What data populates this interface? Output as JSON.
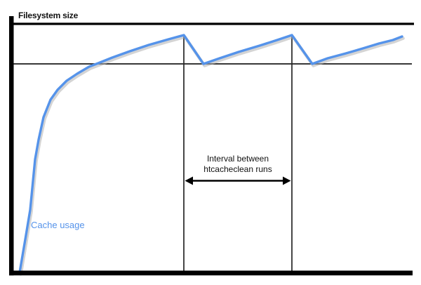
{
  "labels": {
    "filesystem_size": "Filesystem size",
    "cache_usage": "Cache usage",
    "interval_lines": [
      "Interval between",
      "htcacheclean runs"
    ]
  },
  "colors": {
    "cache_line": "#5593ea",
    "cache_line_shadow": "#b0b0b0",
    "axis": "#000000",
    "filesystem_limit_line": "#000000",
    "threshold_line": "#1b1b1b",
    "cleanup_marker_line": "#262626",
    "arrow": "#000000",
    "text": "#111111"
  },
  "chart_data": {
    "type": "line",
    "title": "",
    "xlabel": "",
    "ylabel": "Filesystem size",
    "legend_position": "none",
    "grid": false,
    "units": "pixel coordinates of the source image (y grows downward); axes are unlabeled/qualitative",
    "series": [
      {
        "name": "Cache usage",
        "points": [
          [
            28,
            388
          ],
          [
            36,
            341
          ],
          [
            43,
            299
          ],
          [
            50,
            227
          ],
          [
            55,
            199
          ],
          [
            62,
            167
          ],
          [
            72,
            142
          ],
          [
            82,
            128
          ],
          [
            95,
            115
          ],
          [
            110,
            105
          ],
          [
            127,
            95
          ],
          [
            140,
            90
          ],
          [
            160,
            82
          ],
          [
            185,
            73
          ],
          [
            212,
            64
          ],
          [
            240,
            56
          ],
          [
            262,
            50
          ],
          [
            290,
            91
          ],
          [
            313,
            83
          ],
          [
            340,
            74
          ],
          [
            370,
            65
          ],
          [
            395,
            57
          ],
          [
            416,
            50
          ],
          [
            445,
            91
          ],
          [
            467,
            83
          ],
          [
            493,
            76
          ],
          [
            517,
            69
          ],
          [
            540,
            62
          ],
          [
            560,
            57
          ],
          [
            573,
            52
          ]
        ]
      }
    ],
    "reference_lines": [
      {
        "name": "filesystem size limit",
        "y": 34
      },
      {
        "name": "htcacheclean target level",
        "y": 91
      }
    ],
    "event_markers": [
      {
        "name": "htcacheclean run 1",
        "x": 262
      },
      {
        "name": "htcacheclean run 2",
        "x": 416
      }
    ],
    "annotations": [
      {
        "text": "Interval between htcacheclean runs",
        "arrow_y": 257.5,
        "arrow_from_x": 262,
        "arrow_to_x": 416
      }
    ]
  }
}
